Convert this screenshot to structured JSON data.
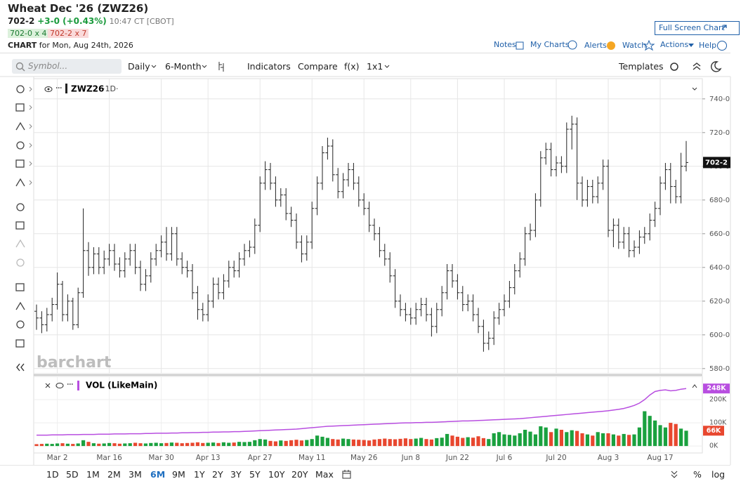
{
  "header": {
    "title": "Wheat Dec '26 (ZWZ26)",
    "change": "+3-0 (+0.43%)",
    "time": "10:47 CT [CBOT]",
    "bid": "702-0 x 4",
    "ask": "702-2 x 7",
    "chart_label": "CHART",
    "chart_date": "for Mon, Aug 24th, 2026",
    "full_screen": "Full Screen Chart",
    "links": [
      "Notes",
      "My Charts",
      "Alerts",
      "Watch",
      "Actions",
      "Help"
    ]
  },
  "toolbar": {
    "search_placeholder": "Symbol...",
    "items": [
      "Daily",
      "6-Month",
      "Indicators",
      "Compare",
      "f(x)",
      "1x1"
    ],
    "templates": "Templates"
  },
  "chart_data": {
    "type": "ohlc",
    "symbol_label": "ZWZ26",
    "interval_label": "·1D·",
    "watermark": "barchart",
    "color": "#222222",
    "grid": true,
    "categories": [
      null,
      null,
      null,
      null,
      "Mar 2",
      null,
      null,
      null,
      null,
      null,
      null,
      null,
      null,
      null,
      "Mar 16",
      null,
      null,
      null,
      null,
      null,
      null,
      null,
      null,
      null,
      "Mar 30",
      null,
      null,
      null,
      null,
      null,
      null,
      null,
      null,
      "Apr 13",
      null,
      null,
      null,
      null,
      null,
      null,
      null,
      null,
      null,
      "Apr 27",
      null,
      null,
      null,
      null,
      null,
      null,
      null,
      null,
      null,
      "May 11",
      null,
      null,
      null,
      null,
      null,
      null,
      null,
      null,
      null,
      "May 26",
      null,
      null,
      null,
      null,
      null,
      null,
      null,
      null,
      "Jun 8",
      null,
      null,
      null,
      null,
      null,
      null,
      null,
      null,
      "Jun 22",
      null,
      null,
      null,
      null,
      null,
      null,
      null,
      null,
      "Jul 6",
      null,
      null,
      null,
      null,
      null,
      null,
      null,
      null,
      null,
      "Jul 20",
      null,
      null,
      null,
      null,
      null,
      null,
      null,
      null,
      null,
      "Aug 3",
      null,
      null,
      null,
      null,
      null,
      null,
      null,
      null,
      null,
      "Aug 17",
      null,
      null,
      null,
      null,
      null
    ],
    "open": [
      614,
      610,
      606,
      612,
      618,
      630,
      612,
      620,
      606,
      625,
      650,
      640,
      648,
      640,
      645,
      650,
      642,
      638,
      645,
      650,
      640,
      630,
      635,
      645,
      650,
      655,
      648,
      660,
      645,
      640,
      638,
      625,
      615,
      612,
      620,
      630,
      625,
      632,
      640,
      638,
      645,
      650,
      652,
      665,
      690,
      698,
      690,
      680,
      683,
      672,
      668,
      655,
      648,
      655,
      675,
      690,
      708,
      712,
      695,
      685,
      692,
      698,
      690,
      680,
      675,
      665,
      660,
      650,
      645,
      635,
      620,
      615,
      612,
      610,
      615,
      618,
      612,
      605,
      615,
      625,
      638,
      632,
      625,
      618,
      620,
      612,
      605,
      595,
      598,
      610,
      615,
      620,
      628,
      638,
      645,
      660,
      662,
      680,
      705,
      710,
      698,
      702,
      700,
      722,
      725,
      690,
      680,
      688,
      682,
      690,
      700,
      662,
      665,
      655,
      660,
      650,
      652,
      658,
      660,
      668,
      675,
      690,
      698,
      688,
      682,
      700
    ],
    "high": [
      618,
      614,
      616,
      622,
      637,
      632,
      624,
      622,
      628,
      675,
      655,
      652,
      652,
      650,
      654,
      654,
      646,
      649,
      654,
      654,
      644,
      639,
      649,
      654,
      659,
      664,
      664,
      664,
      649,
      644,
      642,
      629,
      619,
      624,
      634,
      634,
      636,
      644,
      644,
      649,
      654,
      656,
      669,
      694,
      703,
      702,
      694,
      687,
      687,
      676,
      672,
      659,
      659,
      679,
      694,
      712,
      717,
      716,
      699,
      696,
      702,
      702,
      694,
      684,
      679,
      669,
      664,
      654,
      649,
      639,
      624,
      619,
      616,
      619,
      622,
      622,
      616,
      619,
      629,
      642,
      642,
      636,
      629,
      624,
      624,
      616,
      609,
      602,
      614,
      619,
      624,
      632,
      642,
      649,
      664,
      666,
      684,
      709,
      714,
      714,
      706,
      706,
      726,
      730,
      729,
      694,
      692,
      692,
      694,
      704,
      704,
      669,
      669,
      664,
      664,
      656,
      662,
      664,
      672,
      679,
      694,
      702,
      702,
      692,
      708,
      715
    ],
    "low": [
      603,
      601,
      602,
      608,
      615,
      608,
      608,
      603,
      604,
      622,
      635,
      636,
      636,
      636,
      641,
      638,
      634,
      634,
      641,
      636,
      626,
      626,
      631,
      641,
      646,
      644,
      644,
      641,
      636,
      634,
      621,
      609,
      608,
      608,
      616,
      621,
      621,
      628,
      634,
      634,
      641,
      646,
      648,
      661,
      686,
      686,
      676,
      676,
      668,
      664,
      651,
      643,
      644,
      651,
      671,
      686,
      704,
      691,
      681,
      681,
      688,
      686,
      676,
      671,
      661,
      656,
      646,
      641,
      631,
      616,
      611,
      608,
      606,
      606,
      611,
      608,
      599,
      601,
      611,
      621,
      628,
      621,
      614,
      614,
      608,
      601,
      590,
      591,
      594,
      606,
      611,
      616,
      624,
      634,
      641,
      656,
      658,
      676,
      701,
      694,
      694,
      696,
      696,
      710,
      680,
      676,
      676,
      678,
      678,
      686,
      658,
      652,
      651,
      651,
      646,
      646,
      648,
      654,
      656,
      664,
      671,
      686,
      678,
      678,
      678,
      697
    ],
    "close": [
      610,
      606,
      612,
      618,
      630,
      612,
      620,
      606,
      625,
      650,
      640,
      648,
      640,
      645,
      650,
      642,
      638,
      645,
      650,
      640,
      630,
      635,
      645,
      650,
      655,
      648,
      660,
      645,
      640,
      638,
      625,
      615,
      612,
      620,
      630,
      625,
      632,
      640,
      638,
      645,
      650,
      652,
      665,
      690,
      698,
      690,
      680,
      683,
      672,
      668,
      655,
      648,
      655,
      675,
      690,
      708,
      712,
      695,
      685,
      692,
      698,
      690,
      680,
      675,
      665,
      660,
      650,
      645,
      635,
      620,
      615,
      612,
      610,
      615,
      618,
      612,
      605,
      615,
      625,
      638,
      632,
      625,
      618,
      620,
      612,
      605,
      595,
      598,
      610,
      615,
      620,
      628,
      638,
      645,
      660,
      662,
      680,
      705,
      710,
      698,
      702,
      700,
      722,
      725,
      690,
      680,
      688,
      682,
      690,
      700,
      662,
      665,
      655,
      660,
      650,
      652,
      658,
      660,
      668,
      675,
      690,
      698,
      688,
      682,
      700,
      702.25
    ],
    "ylim": [
      577,
      752
    ],
    "yticks": [
      {
        "value": 580,
        "label": "580-0"
      },
      {
        "value": 600,
        "label": "600-0"
      },
      {
        "value": 620,
        "label": "620-0"
      },
      {
        "value": 640,
        "label": "640-0"
      },
      {
        "value": 660,
        "label": "660-0"
      },
      {
        "value": 680,
        "label": "680-0"
      },
      {
        "value": 700,
        "label": "700-0"
      },
      {
        "value": 720,
        "label": "720-0"
      },
      {
        "value": 740,
        "label": "740-0"
      }
    ],
    "last": {
      "value": 702.25,
      "label": "702-2"
    },
    "volume": {
      "title": "VOL (LikeMain)",
      "up_color": "#1aa13f",
      "down_color": "#e8472f",
      "ma_color": "#b84ee0",
      "values": [
        8,
        9,
        10,
        9,
        11,
        12,
        10,
        9,
        11,
        25,
        18,
        12,
        10,
        11,
        13,
        12,
        10,
        11,
        12,
        14,
        12,
        11,
        13,
        14,
        12,
        13,
        15,
        14,
        12,
        13,
        14,
        16,
        13,
        14,
        15,
        13,
        16,
        14,
        15,
        18,
        17,
        18,
        25,
        30,
        28,
        22,
        20,
        24,
        22,
        25,
        27,
        24,
        26,
        30,
        45,
        40,
        35,
        30,
        28,
        32,
        30,
        28,
        27,
        26,
        24,
        28,
        30,
        32,
        30,
        29,
        31,
        33,
        30,
        32,
        35,
        30,
        28,
        34,
        36,
        52,
        45,
        40,
        35,
        38,
        36,
        42,
        34,
        30,
        55,
        60,
        50,
        48,
        45,
        55,
        70,
        62,
        50,
        85,
        80,
        60,
        75,
        70,
        60,
        68,
        65,
        55,
        50,
        45,
        60,
        55,
        55,
        50,
        45,
        52,
        48,
        50,
        80,
        150,
        130,
        110,
        90,
        80,
        100,
        95,
        75,
        66
      ],
      "ma": [
        47,
        47,
        47,
        48,
        48,
        48,
        49,
        49,
        49,
        50,
        50,
        50,
        51,
        51,
        51,
        52,
        52,
        52,
        53,
        53,
        53,
        54,
        54,
        55,
        55,
        55,
        56,
        56,
        57,
        57,
        58,
        58,
        59,
        59,
        60,
        60,
        61,
        61,
        62,
        62,
        63,
        64,
        65,
        66,
        67,
        68,
        69,
        70,
        71,
        72,
        73,
        75,
        77,
        79,
        81,
        83,
        85,
        86,
        87,
        88,
        89,
        90,
        91,
        92,
        93,
        94,
        95,
        96,
        97,
        98,
        99,
        100,
        100,
        101,
        101,
        102,
        102,
        103,
        104,
        105,
        106,
        107,
        108,
        108,
        109,
        110,
        111,
        112,
        113,
        114,
        115,
        116,
        117,
        118,
        120,
        122,
        124,
        126,
        128,
        130,
        132,
        134,
        136,
        138,
        140,
        142,
        144,
        146,
        148,
        150,
        152,
        155,
        158,
        162,
        168,
        175,
        185,
        200,
        220,
        235,
        240,
        242,
        238,
        240,
        245,
        248
      ],
      "ylim": [
        -30,
        288
      ],
      "yticks": [
        {
          "value": 0,
          "label": "0K"
        },
        {
          "value": 100,
          "label": "100K"
        },
        {
          "value": 200,
          "label": "200K"
        }
      ],
      "ma_label": {
        "value": 248,
        "label": "248K"
      },
      "last_label": {
        "value": 66,
        "label": "66K"
      }
    }
  },
  "range_buttons": [
    "1D",
    "5D",
    "1M",
    "2M",
    "3M",
    "6M",
    "9M",
    "1Y",
    "2Y",
    "3Y",
    "5Y",
    "10Y",
    "20Y",
    "Max"
  ],
  "active_range_index": 5,
  "bottom_right": [
    "%",
    "log"
  ]
}
